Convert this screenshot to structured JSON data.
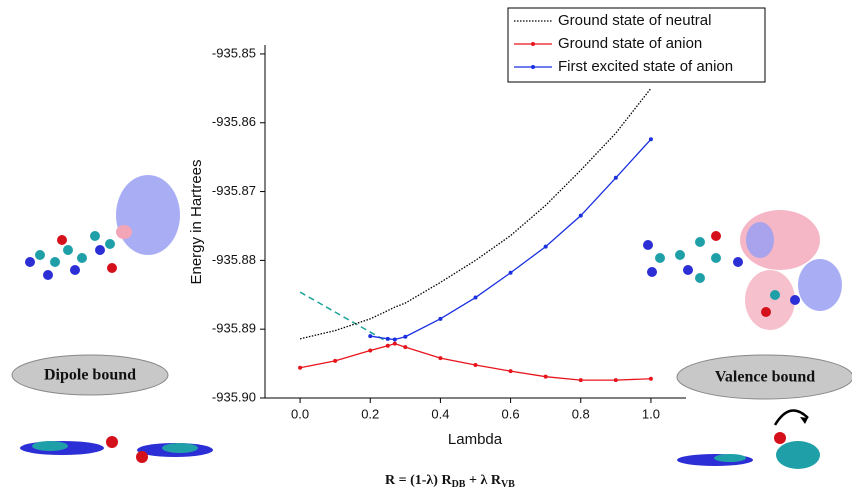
{
  "chart_data": {
    "type": "line",
    "x_label": "Lambda",
    "y_label": "Energy in Hartrees",
    "xlim": [
      -0.1,
      1.1
    ],
    "ylim": [
      -935.9,
      -935.8487
    ],
    "xticks": [
      {
        "value": 0,
        "label": "0.0"
      },
      0.2,
      0.4,
      0.6,
      0.8,
      {
        "value": 1,
        "label": "1.0"
      }
    ],
    "yticks": [
      {
        "value": -935.9,
        "label": "-935.90"
      },
      -935.89,
      -935.88,
      -935.87,
      -935.86,
      -935.85
    ],
    "legend": "top-right",
    "x": [
      0,
      0.1,
      0.2,
      0.25,
      0.27,
      0.3,
      0.4,
      0.5,
      0.6,
      0.7,
      0.8,
      0.9,
      1.0
    ],
    "series": [
      {
        "name": "Ground state of neutral",
        "color": "#000000",
        "dash": "dotted",
        "markers": false,
        "values": [
          -935.8914,
          -935.8902,
          -935.8885,
          -935.8873,
          -935.8868,
          -935.8862,
          -935.8832,
          -935.88,
          -935.8764,
          -935.872,
          -935.8669,
          -935.8615,
          -935.855
        ]
      },
      {
        "name": "Ground state of anion",
        "color": "#e8141c",
        "dash": "solid",
        "markers": true,
        "values": [
          -935.8956,
          -935.8946,
          -935.8931,
          -935.8924,
          -935.8921,
          -935.8926,
          -935.8942,
          -935.8952,
          -935.8961,
          -935.8969,
          -935.8974,
          -935.8974,
          -935.8972
        ]
      },
      {
        "name": "First excited state of anion",
        "color": "#1a2fe0",
        "dash": "solid",
        "markers": true,
        "values": [
          null,
          null,
          -935.891,
          -935.8914,
          -935.8915,
          -935.8911,
          -935.8885,
          -935.8854,
          -935.8818,
          -935.878,
          -935.8735,
          -935.868,
          -935.8624
        ]
      }
    ],
    "annotations": {
      "left_label": "Dipole bound",
      "right_label": "Valence bound",
      "formula": {
        "lead": "R = (1-λ) R",
        "sub1": "DB",
        "mid": " + λ R",
        "sub2": "VB"
      }
    }
  }
}
